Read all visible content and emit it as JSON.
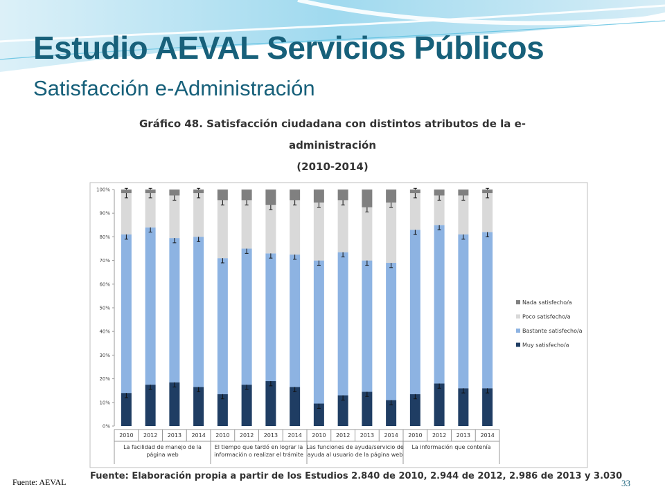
{
  "slide": {
    "title": "Estudio AEVAL Servicios Públicos",
    "subtitle": "Satisfacción e-Administración",
    "source_left": "Fuente: AEVAL",
    "page_number": "33"
  },
  "figure": {
    "title_line1": "Gráfico 48. Satisfacción ciudadana con distintos atributos de la e-",
    "title_line2": "administración",
    "title_line3": "(2010-2014)",
    "caption": "Fuente: Elaboración propia a partir de los Estudios 2.840 de 2010, 2.944 de 2012, 2.986 de 2013 y 3.030"
  },
  "colors": {
    "title": "#17607a",
    "muy": "#1f3d63",
    "bastante": "#8db3e2",
    "poco": "#d9d9d9",
    "nada": "#808080"
  },
  "chart_data": {
    "type": "bar",
    "stacked": true,
    "normalized": true,
    "categories": [
      "2010",
      "2012",
      "2013",
      "2014",
      "2010",
      "2012",
      "2013",
      "2014",
      "2010",
      "2012",
      "2013",
      "2014",
      "2010",
      "2012",
      "2013",
      "2014"
    ],
    "groups": [
      {
        "label_lines": [
          "La facilidad de manejo de la",
          "página web"
        ]
      },
      {
        "label_lines": [
          "El tiempo que tardó en lograr la",
          "información o realizar el trámite"
        ]
      },
      {
        "label_lines": [
          "Las funciones de ayuda/servicio de",
          "ayuda al usuario de la página web"
        ]
      },
      {
        "label_lines": [
          "La información que contenía"
        ]
      }
    ],
    "series": [
      {
        "name": "Muy satisfecho/a",
        "color": "#1f3d63",
        "values": [
          14,
          17.5,
          18.5,
          16.5,
          13.5,
          17.5,
          19,
          16.5,
          9.5,
          13,
          14.5,
          11,
          13.5,
          18,
          16,
          16
        ]
      },
      {
        "name": "Bastante satisfecho/a",
        "color": "#8db3e2",
        "values": [
          67,
          66.5,
          61,
          63.5,
          57.5,
          57.5,
          54,
          56,
          60.5,
          60.5,
          55.5,
          58,
          69.5,
          67,
          65,
          66
        ]
      },
      {
        "name": "Poco satisfecho/a",
        "color": "#d9d9d9",
        "values": [
          17.5,
          14.5,
          18,
          18.5,
          24.5,
          20.5,
          20.5,
          23,
          24.5,
          22,
          22.5,
          25.5,
          15.5,
          12.5,
          16.5,
          16.5
        ]
      },
      {
        "name": "Nada satisfecho/a",
        "color": "#808080",
        "values": [
          1.5,
          1.5,
          2.5,
          1.5,
          4.5,
          4.5,
          6.5,
          4.5,
          5.5,
          4.5,
          7.5,
          5.5,
          1.5,
          2.5,
          2.5,
          1.5
        ]
      }
    ],
    "legend_order": [
      "Nada satisfecho/a",
      "Poco satisfecho/a",
      "Bastante satisfecho/a",
      "Muy satisfecho/a"
    ],
    "legend_position": "right",
    "error_bars": true,
    "yticks": [
      "0%",
      "10%",
      "20%",
      "30%",
      "40%",
      "50%",
      "60%",
      "70%",
      "80%",
      "90%",
      "100%"
    ],
    "ylim": [
      0,
      100
    ],
    "title": "Gráfico 48. Satisfacción ciudadana con distintos atributos de la e-administración (2010-2014)",
    "xlabel": "",
    "ylabel": "",
    "grid": false
  }
}
